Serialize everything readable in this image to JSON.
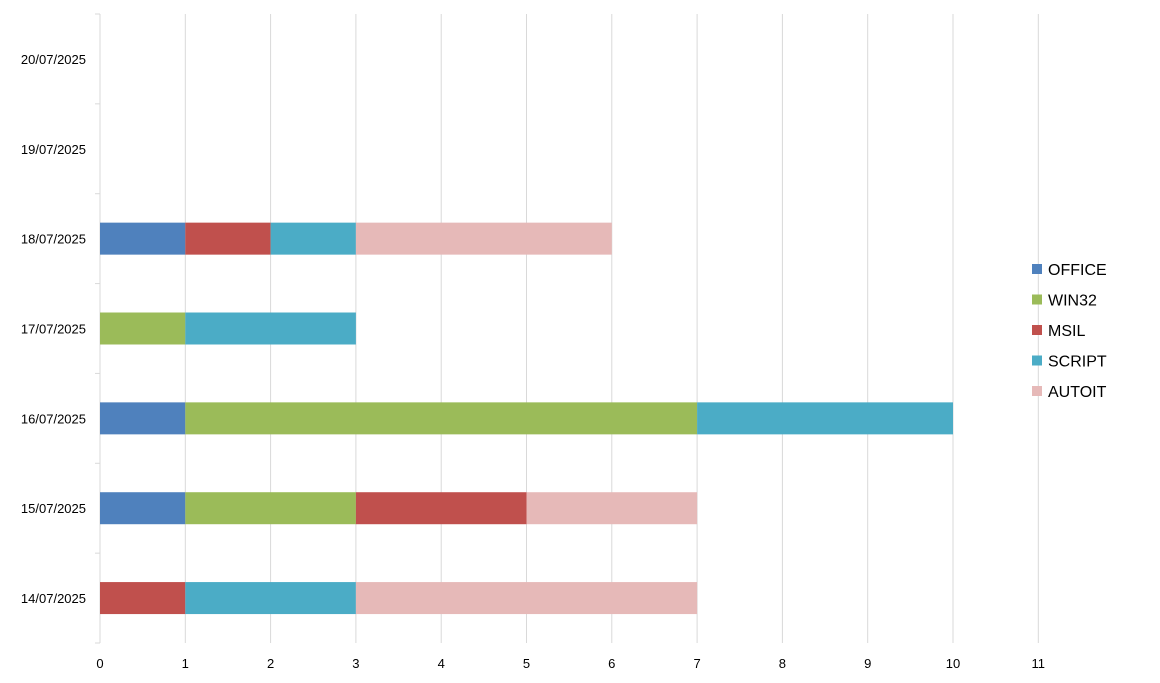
{
  "chart_data": {
    "type": "bar",
    "orientation": "horizontal",
    "stacked": true,
    "categories": [
      "14/07/2025",
      "15/07/2025",
      "16/07/2025",
      "17/07/2025",
      "18/07/2025",
      "19/07/2025",
      "20/07/2025"
    ],
    "series": [
      {
        "name": "OFFICE",
        "color": "#4f81bd",
        "values": [
          0,
          1,
          1,
          0,
          1,
          0,
          0
        ]
      },
      {
        "name": "WIN32",
        "color": "#9bbb59",
        "values": [
          0,
          2,
          6,
          1,
          0,
          0,
          0
        ]
      },
      {
        "name": "MSIL",
        "color": "#c0504d",
        "values": [
          1,
          2,
          0,
          0,
          1,
          0,
          0
        ]
      },
      {
        "name": "SCRIPT",
        "color": "#4bacc6",
        "values": [
          2,
          0,
          3,
          2,
          1,
          0,
          0
        ]
      },
      {
        "name": "AUTOIT",
        "color": "#e6b9b8",
        "values": [
          4,
          2,
          0,
          0,
          3,
          0,
          0
        ]
      }
    ],
    "xlim": [
      0,
      11
    ],
    "x_ticks": [
      "0",
      "1",
      "2",
      "3",
      "4",
      "5",
      "6",
      "7",
      "8",
      "9",
      "10",
      "11"
    ],
    "grid": true,
    "legend_position": "right",
    "title": "",
    "xlabel": "",
    "ylabel": ""
  }
}
